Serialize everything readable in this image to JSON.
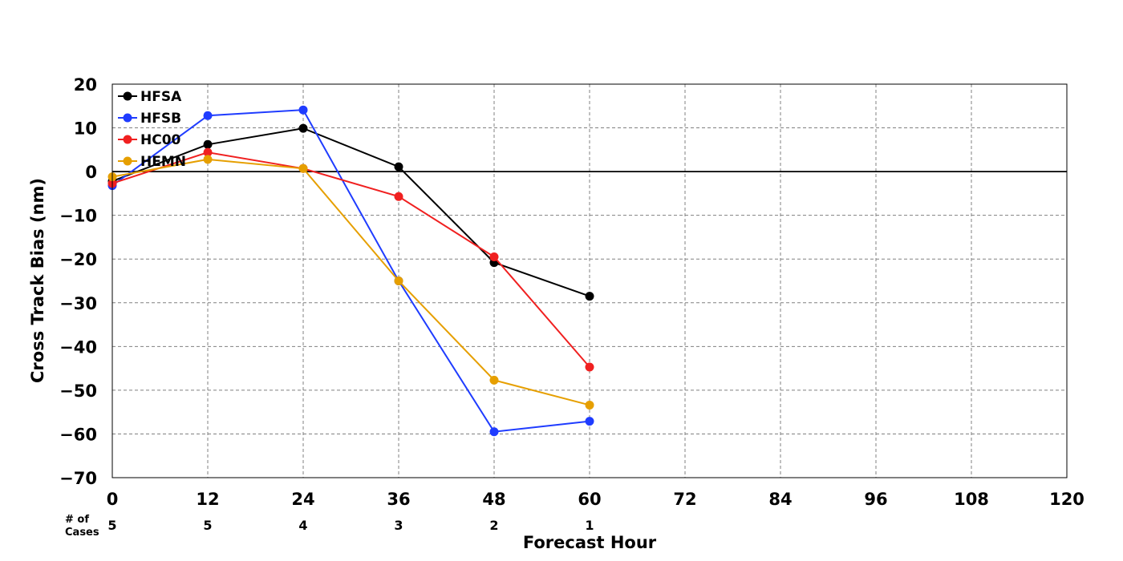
{
  "chart_data": {
    "type": "line",
    "title": "",
    "xlabel": "Forecast Hour",
    "ylabel": "Cross Track Bias (nm)",
    "xlim": [
      0,
      120
    ],
    "ylim": [
      -70,
      20
    ],
    "xticks": [
      0,
      12,
      24,
      36,
      48,
      60,
      72,
      84,
      96,
      108,
      120
    ],
    "yticks": [
      20,
      10,
      0,
      -10,
      -20,
      -30,
      -40,
      -50,
      -60,
      -70
    ],
    "grid": true,
    "legend_position": "top-left",
    "cases_label": "# of Cases",
    "cases_label_lines": [
      "# of",
      "Cases"
    ],
    "cases": [
      {
        "x": 0,
        "n": "5"
      },
      {
        "x": 12,
        "n": "5"
      },
      {
        "x": 24,
        "n": "4"
      },
      {
        "x": 36,
        "n": "3"
      },
      {
        "x": 48,
        "n": "2"
      },
      {
        "x": 60,
        "n": "1"
      }
    ],
    "x": [
      0,
      12,
      24,
      36,
      48,
      60
    ],
    "series": [
      {
        "name": "HFSA",
        "color": "#000000",
        "values": [
          -2.2,
          6.2,
          9.9,
          1.1,
          -20.8,
          -28.5
        ]
      },
      {
        "name": "HFSB",
        "color": "#1f3cff",
        "values": [
          -3.2,
          12.8,
          14.1,
          -25.0,
          -59.5,
          -57.1
        ]
      },
      {
        "name": "HC00",
        "color": "#f02020",
        "values": [
          -2.7,
          4.4,
          0.7,
          -5.7,
          -19.5,
          -44.7
        ]
      },
      {
        "name": "HEMN",
        "color": "#e69f00",
        "values": [
          -1.2,
          2.8,
          0.7,
          -25.0,
          -47.7,
          -53.4
        ]
      }
    ]
  }
}
